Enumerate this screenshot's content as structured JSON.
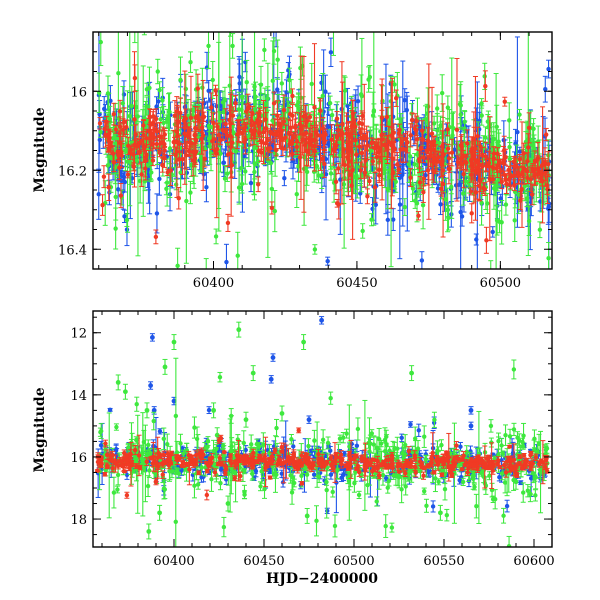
{
  "chart_data": [
    {
      "type": "scatter",
      "panel": "top",
      "xlabel": "",
      "ylabel": "Magnitude",
      "xlim": [
        60358,
        60518
      ],
      "ylim": [
        16.45,
        15.85
      ],
      "y_inverted": true,
      "x_ticks": [
        60400,
        60450,
        60500
      ],
      "x_tick_labels": [
        "60400",
        "60450",
        "60500"
      ],
      "y_ticks": [
        16.0,
        16.2,
        16.4
      ],
      "y_tick_labels": [
        "16",
        "16.2",
        "16.4"
      ],
      "series": [
        {
          "color": "#1e55e8",
          "baseline": [
            [
              60360,
              16.14
            ],
            [
              60400,
              16.11
            ],
            [
              60420,
              16.09
            ],
            [
              60440,
              16.12
            ],
            [
              60460,
              16.16
            ],
            [
              60480,
              16.17
            ],
            [
              60500,
              16.19
            ],
            [
              60518,
              16.22
            ]
          ],
          "scatter": 0.06,
          "error": 0.025
        },
        {
          "color": "#3ee83e",
          "baseline": [
            [
              60360,
              16.13
            ],
            [
              60400,
              16.1
            ],
            [
              60420,
              16.08
            ],
            [
              60440,
              16.11
            ],
            [
              60460,
              16.15
            ],
            [
              60480,
              16.16
            ],
            [
              60500,
              16.18
            ],
            [
              60518,
              16.21
            ]
          ],
          "scatter": 0.07,
          "error": 0.03
        },
        {
          "color": "#f03a24",
          "baseline": [
            [
              60360,
              16.13
            ],
            [
              60400,
              16.11
            ],
            [
              60420,
              16.09
            ],
            [
              60440,
              16.12
            ],
            [
              60460,
              16.15
            ],
            [
              60480,
              16.17
            ],
            [
              60500,
              16.19
            ],
            [
              60518,
              16.22
            ]
          ],
          "scatter": 0.035,
          "error": 0.02
        }
      ]
    },
    {
      "type": "scatter",
      "panel": "bottom",
      "xlabel": "HJD−2400000",
      "ylabel": "Magnitude",
      "xlim": [
        60355,
        60610
      ],
      "ylim": [
        18.9,
        11.3
      ],
      "y_inverted": true,
      "x_ticks": [
        60400,
        60450,
        60500,
        60550,
        60600
      ],
      "x_tick_labels": [
        "60400",
        "60450",
        "60500",
        "60550",
        "60600"
      ],
      "y_ticks": [
        12,
        14,
        16,
        18
      ],
      "y_tick_labels": [
        "12",
        "14",
        "16",
        "18"
      ],
      "series": [
        {
          "color": "#1e55e8",
          "baseline": [
            [
              60360,
              16.12
            ],
            [
              60450,
              16.15
            ],
            [
              60520,
              16.22
            ],
            [
              60610,
              16.25
            ]
          ],
          "scatter": 0.25,
          "error": 0.1,
          "outliers": [
            [
              60388,
              12.15
            ],
            [
              60387,
              13.7
            ],
            [
              60389,
              14.5
            ],
            [
              60400,
              14.2
            ],
            [
              60455,
              12.8
            ],
            [
              60454,
              13.5
            ],
            [
              60475,
              14.8
            ],
            [
              60482,
              11.6
            ],
            [
              60565,
              14.5
            ],
            [
              60565,
              15.0
            ]
          ]
        },
        {
          "color": "#3ee83e",
          "baseline": [
            [
              60360,
              16.1
            ],
            [
              60450,
              16.15
            ],
            [
              60520,
              16.2
            ],
            [
              60610,
              16.25
            ]
          ],
          "scatter": 0.5,
          "error": 0.2,
          "outliers": [
            [
              60369,
              13.6
            ],
            [
              60373,
              13.9
            ],
            [
              60385,
              14.5
            ],
            [
              60386,
              18.4
            ],
            [
              60395,
              13.1
            ],
            [
              60400,
              12.3
            ],
            [
              60407,
              15.8
            ],
            [
              60422,
              14.5
            ],
            [
              60424,
              15.3
            ],
            [
              60436,
              11.9
            ],
            [
              60444,
              13.3
            ],
            [
              60440,
              14.8
            ],
            [
              60460,
              14.6
            ],
            [
              60472,
              12.3
            ],
            [
              60474,
              17.9
            ],
            [
              60532,
              13.3
            ],
            [
              60548,
              17.8
            ],
            [
              60590,
              16.8
            ],
            [
              60598,
              17.2
            ],
            [
              60392,
              17.8
            ],
            [
              60430,
              17.5
            ]
          ]
        },
        {
          "color": "#f03a24",
          "baseline": [
            [
              60360,
              16.12
            ],
            [
              60450,
              16.14
            ],
            [
              60520,
              16.2
            ],
            [
              60610,
              16.22
            ]
          ],
          "scatter": 0.15,
          "error": 0.08,
          "outliers": [
            [
              60426,
              15.4
            ],
            [
              60514,
              16.6
            ],
            [
              60390,
              16.8
            ]
          ]
        }
      ]
    }
  ]
}
